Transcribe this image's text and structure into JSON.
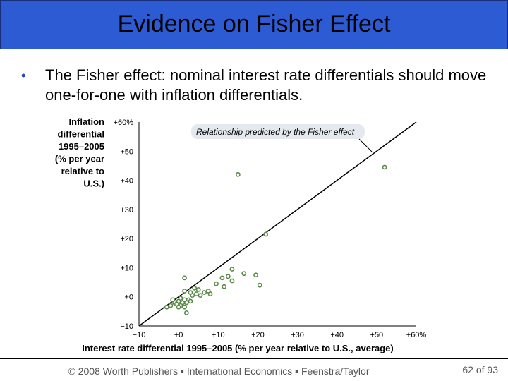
{
  "slide": {
    "title": "Evidence on Fisher Effect",
    "bullet": "The Fisher effect: nominal interest rate differentials should move one-for-one with inflation differentials.",
    "bullet_symbol": "•",
    "footer": "© 2008 Worth Publishers ▪ International Economics ▪ Feenstra/Taylor",
    "page_number": "62",
    "page_of": "of 93",
    "colors": {
      "title_bar": "#2d5bd4",
      "bullet": "#1f49b5",
      "points": "#5a8a4a"
    }
  },
  "chart_data": {
    "type": "scatter",
    "ylabel_lines": [
      "Inflation",
      "differential",
      "1995–2005",
      "(% per year",
      "relative to",
      "U.S.)"
    ],
    "xlabel": "Interest rate differential 1995–2005 (% per year relative to U.S., average)",
    "xlim": [
      -10,
      60
    ],
    "ylim": [
      -10,
      60
    ],
    "x_ticks": [
      "−10",
      "+0",
      "+10",
      "+20",
      "+30",
      "+40",
      "+50",
      "+60%"
    ],
    "y_ticks": [
      "−10",
      "+0",
      "+10",
      "+20",
      "+30",
      "+40",
      "+50",
      "+60%"
    ],
    "annotation": "Relationship predicted by the Fisher effect",
    "fisher_line": {
      "x": [
        -10,
        60
      ],
      "y": [
        -10,
        60
      ]
    },
    "points": [
      {
        "x": 52,
        "y": 44.5
      },
      {
        "x": 15,
        "y": 42
      },
      {
        "x": 22,
        "y": 21.5
      },
      {
        "x": 13.5,
        "y": 9.5
      },
      {
        "x": 16.5,
        "y": 8
      },
      {
        "x": 19.5,
        "y": 7.5
      },
      {
        "x": 12.5,
        "y": 7
      },
      {
        "x": 1.5,
        "y": 6.5
      },
      {
        "x": 11,
        "y": 6.5
      },
      {
        "x": 13.5,
        "y": 5.5
      },
      {
        "x": 9.5,
        "y": 4.5
      },
      {
        "x": 20.5,
        "y": 4
      },
      {
        "x": 11.5,
        "y": 3.5
      },
      {
        "x": 4,
        "y": 3
      },
      {
        "x": 5,
        "y": 2.5
      },
      {
        "x": 7.5,
        "y": 2
      },
      {
        "x": 1.5,
        "y": 2
      },
      {
        "x": 3,
        "y": 1.5
      },
      {
        "x": 6.5,
        "y": 1.5
      },
      {
        "x": 4.5,
        "y": 1
      },
      {
        "x": 5.5,
        "y": 0.5
      },
      {
        "x": 3.5,
        "y": 0.5
      },
      {
        "x": 8,
        "y": 1
      },
      {
        "x": -1.5,
        "y": -1
      },
      {
        "x": 0.5,
        "y": -0.5
      },
      {
        "x": 1.5,
        "y": -1
      },
      {
        "x": 2.5,
        "y": -1
      },
      {
        "x": 0,
        "y": -1.5
      },
      {
        "x": 3,
        "y": -1.5
      },
      {
        "x": -1,
        "y": -2
      },
      {
        "x": 1,
        "y": -2
      },
      {
        "x": 2,
        "y": -2
      },
      {
        "x": -0.5,
        "y": -2.5
      },
      {
        "x": 0.5,
        "y": -3
      },
      {
        "x": -2,
        "y": -3
      },
      {
        "x": 0,
        "y": -3.5
      },
      {
        "x": -3,
        "y": -3.5
      },
      {
        "x": 1.5,
        "y": -3.5
      },
      {
        "x": 2,
        "y": -5.5
      }
    ]
  }
}
